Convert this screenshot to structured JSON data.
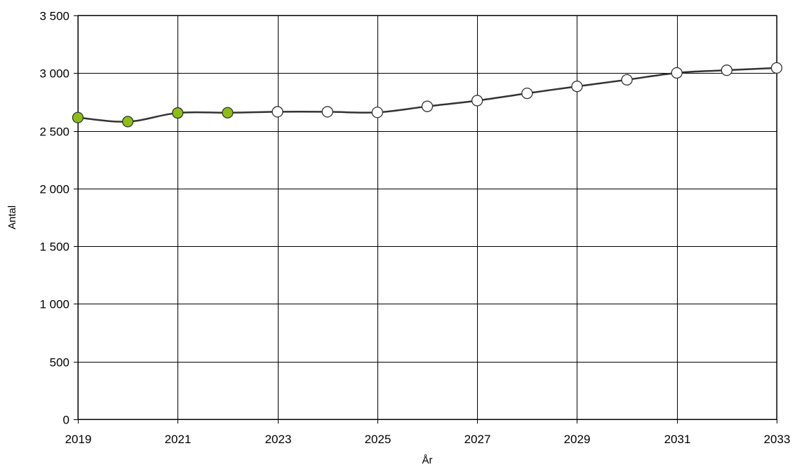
{
  "chart_data": {
    "type": "line",
    "xlabel": "År",
    "ylabel": "Antal",
    "xlim": [
      2019,
      2033
    ],
    "ylim": [
      0,
      3500
    ],
    "x_ticks": [
      2019,
      2021,
      2023,
      2025,
      2027,
      2029,
      2031,
      2033
    ],
    "x_tick_labels": [
      "2019",
      "2021",
      "2023",
      "2025",
      "2027",
      "2029",
      "2031",
      "2033"
    ],
    "y_ticks": [
      0,
      500,
      1000,
      1500,
      2000,
      2500,
      3000,
      3500
    ],
    "y_tick_labels": [
      "0",
      "500",
      "1 000",
      "1 500",
      "2 000",
      "2 500",
      "3 000",
      "3 500"
    ],
    "grid": true,
    "series": [
      {
        "x": [
          2019,
          2020,
          2021,
          2022,
          2023,
          2024,
          2025,
          2026,
          2027,
          2028,
          2029,
          2030,
          2031,
          2032,
          2033
        ],
        "values": [
          2615,
          2580,
          2655,
          2657,
          2665,
          2665,
          2660,
          2712,
          2762,
          2825,
          2885,
          2942,
          3002,
          3025,
          3045
        ],
        "marker_colors": [
          "#8cbf14",
          "#8cbf14",
          "#8cbf14",
          "#8cbf14",
          "#ffffff",
          "#ffffff",
          "#ffffff",
          "#ffffff",
          "#ffffff",
          "#ffffff",
          "#ffffff",
          "#ffffff",
          "#ffffff",
          "#ffffff",
          "#ffffff"
        ]
      }
    ],
    "colors": {
      "line": "#333333",
      "marker_outline": "#333333",
      "grid": "#000000",
      "observed_marker": "#8cbf14",
      "forecast_marker": "#ffffff"
    }
  }
}
